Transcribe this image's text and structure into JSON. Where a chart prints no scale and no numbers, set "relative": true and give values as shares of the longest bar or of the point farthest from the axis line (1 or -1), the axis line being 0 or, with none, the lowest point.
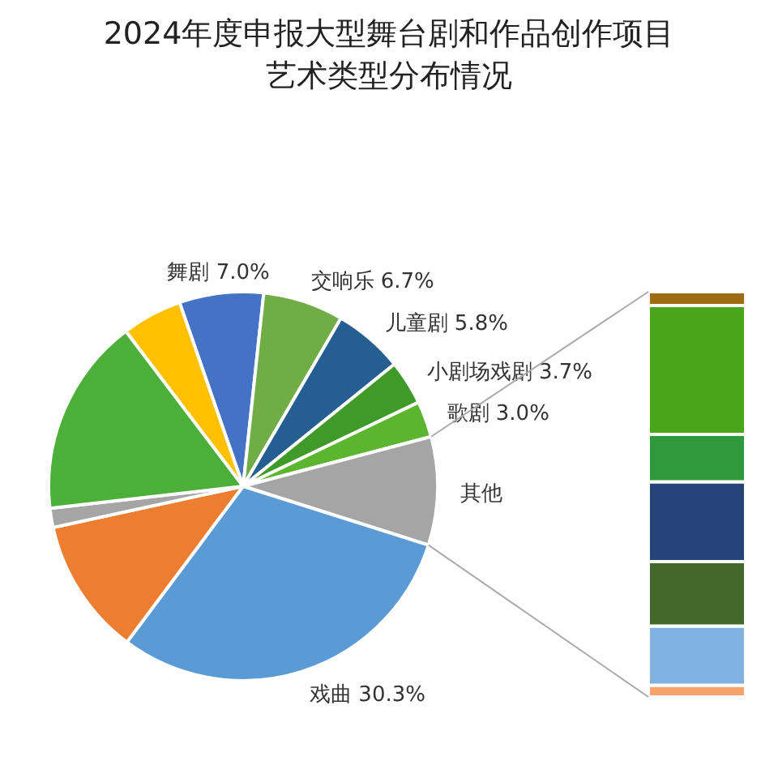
{
  "chart_data": [
    {
      "type": "pie",
      "title": "2024年度申报大型舞台剧和作品创作项目",
      "subtitle": "艺术类型分布情况",
      "categories": [
        "舞剧",
        "交响乐",
        "儿童剧",
        "小剧场戏剧",
        "歌剧",
        "其他",
        "戏曲",
        null,
        null,
        null,
        null
      ],
      "values": [
        7.0,
        6.7,
        5.8,
        3.7,
        3.0,
        9.0,
        30.3,
        11.4,
        1.6,
        16.5,
        5.0
      ],
      "value_labels": [
        "7.0%",
        "6.7%",
        "5.8%",
        "3.7%",
        "3.0%",
        null,
        "30.3%",
        null,
        null,
        null,
        null
      ],
      "colors": [
        "#4472c4",
        "#70ad47",
        "#255e91",
        "#3f9a2a",
        "#5bb52e",
        "#a5a5a5",
        "#5b9bd5",
        "#ed7d31",
        "#a5a5a5",
        "#4caf3a",
        "#ffc000"
      ]
    },
    {
      "type": "bar",
      "stacked": true,
      "relative": true,
      "categories": [
        null
      ],
      "series": [
        {
          "color": "#f4a46a",
          "values": [
            0.029
          ]
        },
        {
          "color": "#7fb2e0",
          "values": [
            0.146
          ]
        },
        {
          "color": "#43682b",
          "values": [
            0.159
          ]
        },
        {
          "color": "#264478",
          "values": [
            0.197
          ]
        },
        {
          "color": "#2e9a3c",
          "values": [
            0.117
          ]
        },
        {
          "color": "#4aa51c",
          "values": [
            0.318
          ]
        },
        {
          "color": "#9e6b12",
          "values": [
            0.034
          ]
        }
      ]
    }
  ]
}
